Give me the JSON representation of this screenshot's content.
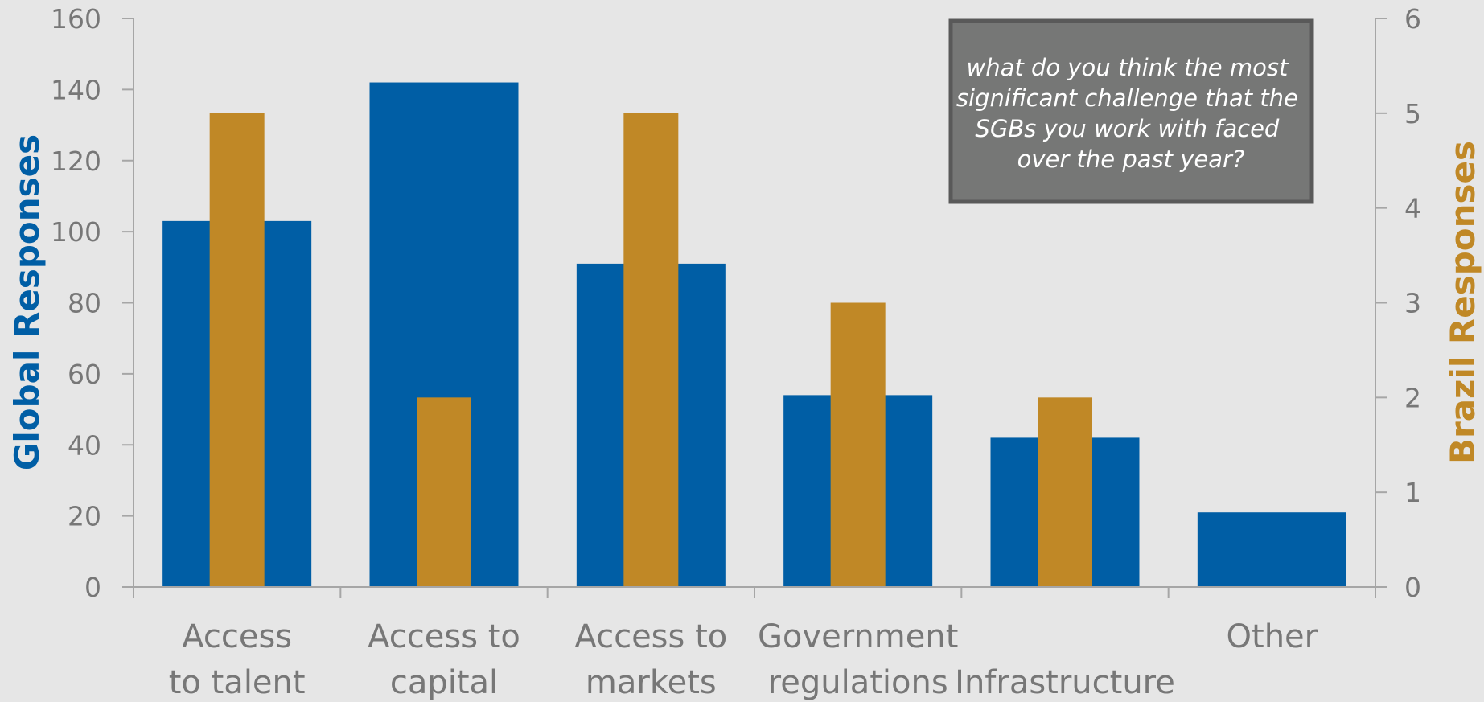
{
  "chart_data": {
    "type": "bar",
    "categories": [
      [
        "Access",
        "to talent"
      ],
      [
        "Access to",
        "capital"
      ],
      [
        "Access to",
        "markets"
      ],
      [
        "Government",
        "regulations"
      ],
      [
        "",
        "Infrastructure"
      ],
      [
        "Other",
        ""
      ]
    ],
    "series": [
      {
        "name": "Global Responses",
        "axis": "left",
        "color": "#005ea5",
        "values": [
          103,
          142,
          91,
          54,
          42,
          21
        ]
      },
      {
        "name": "Brazil Responses",
        "axis": "right",
        "color": "#c08826",
        "values": [
          5,
          2,
          5,
          3,
          2,
          0
        ]
      }
    ],
    "ylabel_left": "Global Responses",
    "ylabel_right": "Brazil Responses",
    "ylim_left": [
      0,
      160
    ],
    "ylim_right": [
      0,
      6
    ],
    "yticks_left": [
      0,
      20,
      40,
      60,
      80,
      100,
      120,
      140,
      160
    ],
    "yticks_right": [
      0,
      1,
      2,
      3,
      4,
      5,
      6
    ],
    "grid": false,
    "annotation": {
      "lines": [
        "what do you think the most",
        "significant challenge that the",
        "SGBs you work with faced",
        "over the past year?"
      ],
      "placement": "top-right"
    },
    "colors": {
      "background": "#e6e6e6",
      "axis": "#a6a6a6",
      "tick_text": "#777777",
      "callout_fill": "#767776",
      "callout_border": "#595959"
    }
  }
}
